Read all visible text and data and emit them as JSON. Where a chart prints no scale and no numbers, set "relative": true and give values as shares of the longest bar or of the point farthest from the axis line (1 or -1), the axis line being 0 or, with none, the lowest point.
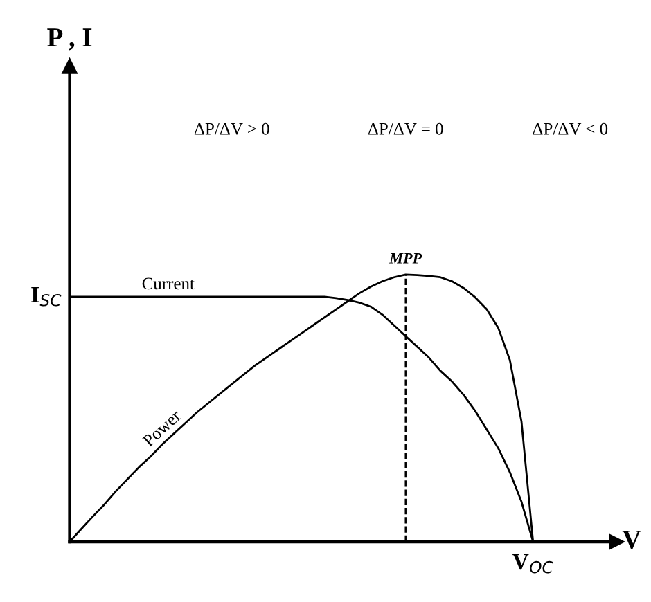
{
  "chart_data": {
    "type": "line",
    "relative": true,
    "xlabel": "V",
    "legend": false,
    "grid": false,
    "marker": "none",
    "categories": [
      null,
      null,
      null,
      null,
      null,
      null,
      null,
      null,
      null,
      null,
      null,
      null,
      null,
      null,
      null,
      null,
      null,
      null,
      null,
      null,
      null,
      null,
      null,
      null,
      null,
      null,
      null,
      null,
      null,
      null,
      null,
      null,
      null,
      null,
      null,
      null,
      null,
      null,
      null,
      null,
      null
    ],
    "series": [
      {
        "name": "Current",
        "color": "#000000",
        "values": [
          0.917,
          0.917,
          0.917,
          0.917,
          0.917,
          0.917,
          0.917,
          0.917,
          0.917,
          0.917,
          0.917,
          0.917,
          0.917,
          0.917,
          0.917,
          0.917,
          0.917,
          0.917,
          0.917,
          0.917,
          0.917,
          0.917,
          0.917,
          0.912,
          0.905,
          0.895,
          0.88,
          0.85,
          0.81,
          0.77,
          0.73,
          0.69,
          0.64,
          0.6,
          0.55,
          0.49,
          0.42,
          0.35,
          0.26,
          0.15,
          0
        ]
      },
      {
        "name": "Power",
        "color": "#000000",
        "values": [
          0,
          0.048,
          0.095,
          0.14,
          0.19,
          0.235,
          0.28,
          0.32,
          0.365,
          0.405,
          0.445,
          0.485,
          0.52,
          0.555,
          0.59,
          0.625,
          0.66,
          0.69,
          0.72,
          0.75,
          0.78,
          0.81,
          0.84,
          0.87,
          0.9,
          0.93,
          0.955,
          0.975,
          0.99,
          1.0,
          0.998,
          0.995,
          0.99,
          0.975,
          0.95,
          0.915,
          0.87,
          0.8,
          0.68,
          0.45,
          0
        ]
      }
    ],
    "ref_lines": [
      {
        "axis": "x",
        "label": "MPP",
        "line_style": "dashed",
        "color": "#000000"
      }
    ],
    "annotations": [
      "ΔP/ΔV > 0",
      "ΔP/ΔV = 0",
      "ΔP/ΔV < 0",
      "I$_{SC}$",
      "V$_{OC}$",
      "P , I"
    ]
  }
}
